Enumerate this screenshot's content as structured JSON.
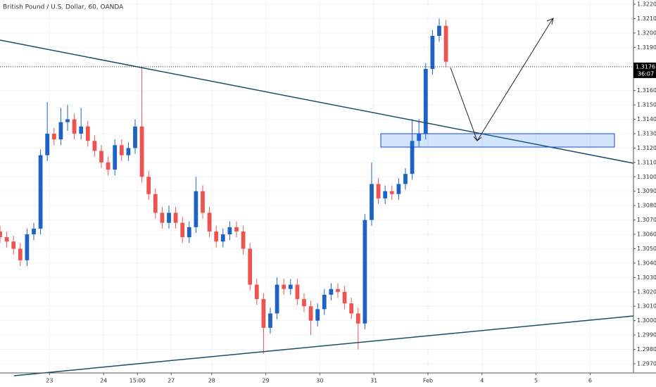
{
  "chart_data": {
    "type": "candlestick",
    "title": "British Pound / U.S. Dollar, 60, OANDA",
    "up_color": "#1e63c4",
    "down_color": "#ef5350",
    "grid": true,
    "xlim": [
      0,
      281.25
    ],
    "xticks": [
      {
        "value": 22,
        "label": "23"
      },
      {
        "value": 46,
        "label": "24"
      },
      {
        "value": 61,
        "label": "15:00"
      },
      {
        "value": 76,
        "label": "27"
      },
      {
        "value": 94,
        "label": "28"
      },
      {
        "value": 118,
        "label": "29"
      },
      {
        "value": 142,
        "label": "30"
      },
      {
        "value": 166,
        "label": "31"
      },
      {
        "value": 190,
        "label": "Feb"
      },
      {
        "value": 214,
        "label": "4"
      },
      {
        "value": 238,
        "label": "5"
      },
      {
        "value": 262,
        "label": "6"
      }
    ],
    "ylim": [
      1.297,
      1.322
    ],
    "yticks": [
      {
        "value": 1.297,
        "label": "1.29700"
      },
      {
        "value": 1.298,
        "label": "1.29800"
      },
      {
        "value": 1.299,
        "label": "1.29900"
      },
      {
        "value": 1.3,
        "label": "1.30000"
      },
      {
        "value": 1.301,
        "label": "1.30100"
      },
      {
        "value": 1.302,
        "label": "1.30200"
      },
      {
        "value": 1.303,
        "label": "1.30300"
      },
      {
        "value": 1.304,
        "label": "1.30400"
      },
      {
        "value": 1.305,
        "label": "1.30500"
      },
      {
        "value": 1.306,
        "label": "1.30600"
      },
      {
        "value": 1.307,
        "label": "1.30700"
      },
      {
        "value": 1.308,
        "label": "1.30800"
      },
      {
        "value": 1.309,
        "label": "1.30900"
      },
      {
        "value": 1.31,
        "label": "1.31000"
      },
      {
        "value": 1.311,
        "label": "1.31100"
      },
      {
        "value": 1.312,
        "label": "1.31200"
      },
      {
        "value": 1.313,
        "label": "1.31300"
      },
      {
        "value": 1.314,
        "label": "1.31400"
      },
      {
        "value": 1.315,
        "label": "1.31500"
      },
      {
        "value": 1.316,
        "label": "1.31600"
      },
      {
        "value": 1.319,
        "label": "1.31900"
      },
      {
        "value": 1.32,
        "label": "1.32000"
      },
      {
        "value": 1.321,
        "label": "1.32100"
      },
      {
        "value": 1.322,
        "label": "1.32200"
      }
    ],
    "last_price": {
      "value": 1.31765,
      "label": "1.31765"
    },
    "countdown": "36:07",
    "x": [
      0,
      3,
      6,
      9,
      12,
      15,
      18,
      21,
      24,
      27,
      30,
      33,
      36,
      39,
      42,
      45,
      48,
      51,
      54,
      57,
      60,
      63,
      66,
      69,
      72,
      75,
      78,
      81,
      84,
      87,
      90,
      93,
      96,
      99,
      102,
      105,
      108,
      111,
      114,
      117,
      120,
      123,
      126,
      129,
      132,
      135,
      138,
      141,
      144,
      147,
      150,
      153,
      156,
      159,
      162,
      165,
      168,
      171,
      174,
      177,
      180,
      183,
      186,
      189,
      192,
      195,
      198
    ],
    "ohlc": [
      [
        1.3062,
        1.3066,
        1.3054,
        1.3058
      ],
      [
        1.3058,
        1.3062,
        1.3051,
        1.3055
      ],
      [
        1.3055,
        1.3059,
        1.3046,
        1.305
      ],
      [
        1.305,
        1.3054,
        1.3038,
        1.3042
      ],
      [
        1.3042,
        1.3064,
        1.3038,
        1.306
      ],
      [
        1.306,
        1.3068,
        1.3056,
        1.3064
      ],
      [
        1.3064,
        1.3119,
        1.306,
        1.3115
      ],
      [
        1.3115,
        1.3152,
        1.3111,
        1.313
      ],
      [
        1.313,
        1.3134,
        1.3122,
        1.3126
      ],
      [
        1.3126,
        1.3148,
        1.3122,
        1.3138
      ],
      [
        1.3138,
        1.315,
        1.3132,
        1.314
      ],
      [
        1.314,
        1.3144,
        1.3126,
        1.313
      ],
      [
        1.313,
        1.3148,
        1.3126,
        1.3135
      ],
      [
        1.3135,
        1.3139,
        1.3121,
        1.3125
      ],
      [
        1.3125,
        1.3129,
        1.3114,
        1.3118
      ],
      [
        1.3118,
        1.3122,
        1.3106,
        1.311
      ],
      [
        1.311,
        1.3114,
        1.3101,
        1.3105
      ],
      [
        1.3105,
        1.3126,
        1.3101,
        1.3122
      ],
      [
        1.3122,
        1.3126,
        1.3111,
        1.3115
      ],
      [
        1.3115,
        1.3124,
        1.3111,
        1.312
      ],
      [
        1.312,
        1.314,
        1.3116,
        1.3135
      ],
      [
        1.3135,
        1.3177,
        1.3096,
        1.31
      ],
      [
        1.31,
        1.3104,
        1.3084,
        1.3088
      ],
      [
        1.3088,
        1.3092,
        1.3071,
        1.3075
      ],
      [
        1.3075,
        1.3079,
        1.3064,
        1.3068
      ],
      [
        1.3068,
        1.308,
        1.3064,
        1.3075
      ],
      [
        1.3075,
        1.3079,
        1.3064,
        1.3068
      ],
      [
        1.3068,
        1.3072,
        1.3054,
        1.3058
      ],
      [
        1.3058,
        1.3069,
        1.3054,
        1.3065
      ],
      [
        1.3065,
        1.31,
        1.3061,
        1.309
      ],
      [
        1.309,
        1.3094,
        1.3071,
        1.3075
      ],
      [
        1.3075,
        1.3079,
        1.3058,
        1.3062
      ],
      [
        1.3062,
        1.3066,
        1.3051,
        1.3055
      ],
      [
        1.3055,
        1.3064,
        1.3051,
        1.306
      ],
      [
        1.306,
        1.3069,
        1.3056,
        1.3065
      ],
      [
        1.3065,
        1.3069,
        1.3058,
        1.3062
      ],
      [
        1.3062,
        1.3066,
        1.3046,
        1.305
      ],
      [
        1.305,
        1.3054,
        1.3021,
        1.3025
      ],
      [
        1.3025,
        1.3029,
        1.3011,
        1.3015
      ],
      [
        1.3015,
        1.3019,
        1.2977,
        1.2995
      ],
      [
        1.2995,
        1.3009,
        1.2991,
        1.3005
      ],
      [
        1.3005,
        1.303,
        1.3001,
        1.3025
      ],
      [
        1.3025,
        1.3029,
        1.3018,
        1.3022
      ],
      [
        1.3022,
        1.3029,
        1.3018,
        1.3025
      ],
      [
        1.3025,
        1.3029,
        1.3011,
        1.3015
      ],
      [
        1.3015,
        1.3019,
        1.3006,
        1.301
      ],
      [
        1.301,
        1.3014,
        1.299,
        1.3
      ],
      [
        1.3,
        1.3012,
        1.2996,
        1.3008
      ],
      [
        1.3008,
        1.3022,
        1.3004,
        1.3018
      ],
      [
        1.3018,
        1.3026,
        1.3014,
        1.3022
      ],
      [
        1.3022,
        1.3026,
        1.3016,
        1.302
      ],
      [
        1.302,
        1.3024,
        1.3008,
        1.3012
      ],
      [
        1.3012,
        1.3016,
        1.3001,
        1.3005
      ],
      [
        1.3005,
        1.3009,
        1.298,
        1.2998
      ],
      [
        1.2998,
        1.3074,
        1.2994,
        1.307
      ],
      [
        1.307,
        1.311,
        1.3066,
        1.3095
      ],
      [
        1.3095,
        1.3099,
        1.3081,
        1.3085
      ],
      [
        1.3085,
        1.3094,
        1.3081,
        1.309
      ],
      [
        1.309,
        1.3094,
        1.3084,
        1.3088
      ],
      [
        1.3088,
        1.3099,
        1.3084,
        1.3095
      ],
      [
        1.3095,
        1.3106,
        1.3091,
        1.3102
      ],
      [
        1.3102,
        1.314,
        1.3098,
        1.3125
      ],
      [
        1.3125,
        1.314,
        1.3121,
        1.313
      ],
      [
        1.313,
        1.3179,
        1.3126,
        1.3175
      ],
      [
        1.3175,
        1.3202,
        1.3171,
        1.3198
      ],
      [
        1.3198,
        1.321,
        1.3194,
        1.3205
      ],
      [
        1.3205,
        1.3209,
        1.3176,
        1.318
      ]
    ]
  }
}
